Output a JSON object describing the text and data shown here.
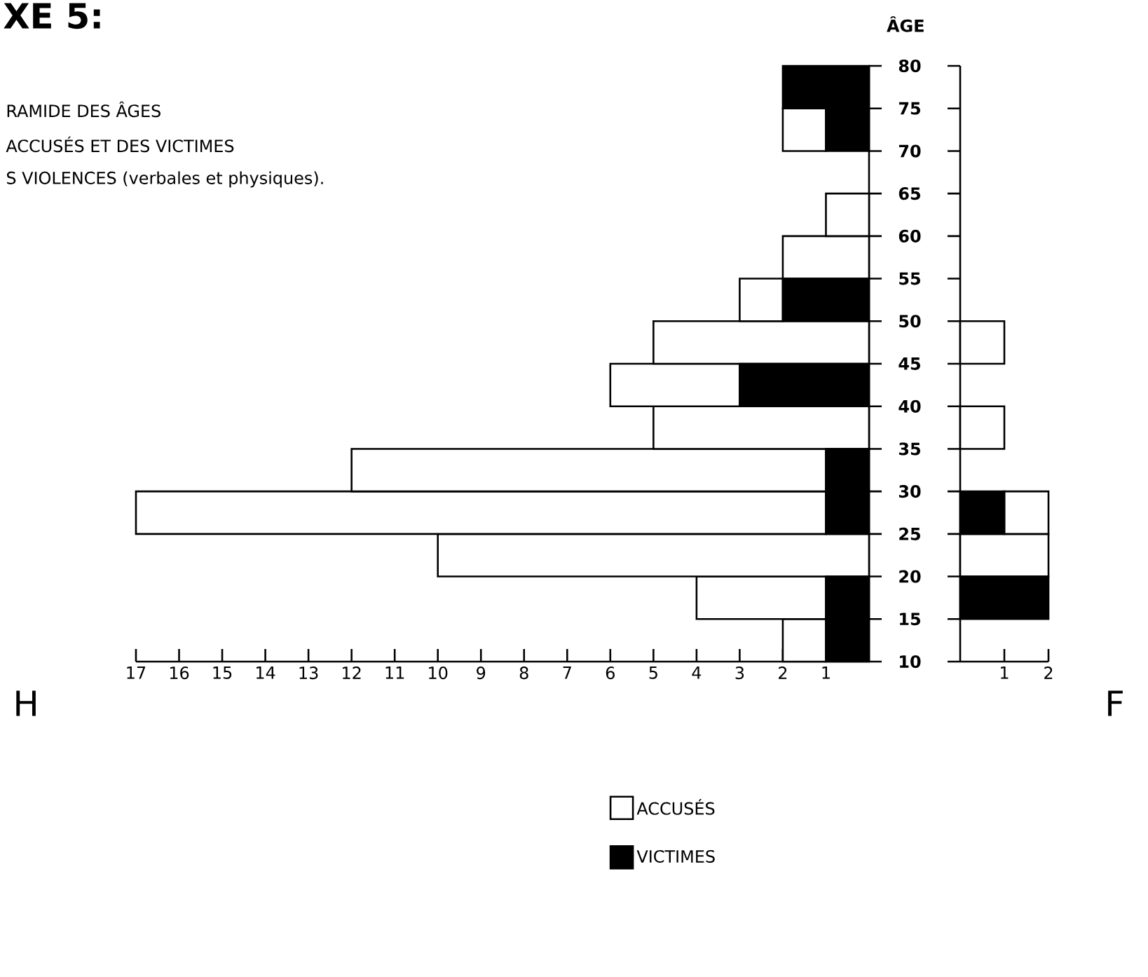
{
  "chart_data": [
    {
      "type": "bar",
      "title": "XE 5:",
      "subtitle": "RAMIDE DES ÂGES",
      "annotations": [
        "ACCUSÉS ET DES VICTIMES",
        "S VIOLENCES (verbales et physiques)."
      ],
      "orientation": "horizontal",
      "stacked": true,
      "xlabel": "H",
      "ylabel": "ÂGE",
      "x": [
        12.5,
        17.5,
        22.5,
        27.5,
        32.5,
        37.5,
        42.5,
        47.5,
        52.5,
        57.5,
        62.5,
        67.5,
        72.5,
        77.5
      ],
      "series": [
        {
          "name": "VICTIMES",
          "color": "#000000",
          "values": [
            1,
            1,
            0,
            1,
            1,
            0,
            3,
            0,
            2,
            0,
            0,
            0,
            1,
            2
          ]
        },
        {
          "name": "ACCUSÉS",
          "color": "#ffffff",
          "values": [
            1,
            3,
            10,
            16,
            11,
            5,
            3,
            5,
            1,
            2,
            1,
            0,
            1,
            0
          ]
        }
      ],
      "xlim": [
        17,
        0
      ],
      "xticks": [
        1,
        2,
        3,
        4,
        5,
        6,
        7,
        8,
        9,
        10,
        11,
        12,
        13,
        14,
        15,
        16,
        17
      ],
      "ylim": [
        10,
        80
      ],
      "yticks": [
        10,
        15,
        20,
        25,
        30,
        35,
        40,
        45,
        50,
        55,
        60,
        65,
        70,
        75,
        80
      ],
      "legend": "bottom"
    },
    {
      "type": "bar",
      "orientation": "horizontal",
      "stacked": true,
      "xlabel": "F",
      "x": [
        12.5,
        17.5,
        22.5,
        27.5,
        32.5,
        37.5,
        42.5,
        47.5,
        52.5,
        57.5,
        62.5,
        67.5,
        72.5,
        77.5
      ],
      "series": [
        {
          "color": "#000000",
          "values": [
            0,
            2,
            0,
            1,
            0,
            0,
            0,
            0,
            0,
            0,
            0,
            0,
            0,
            0
          ]
        },
        {
          "color": "#ffffff",
          "values": [
            0,
            0,
            2,
            1,
            0,
            1,
            0,
            1,
            0,
            0,
            0,
            0,
            0,
            0
          ]
        }
      ],
      "xlim": [
        0,
        2
      ],
      "xticks": [
        1,
        2
      ],
      "ylim": [
        10,
        80
      ],
      "yticks": [
        10,
        15,
        20,
        25,
        30,
        35,
        40,
        45,
        50,
        55,
        60,
        65,
        70,
        75,
        80
      ],
      "tick_labels": "x"
    }
  ]
}
